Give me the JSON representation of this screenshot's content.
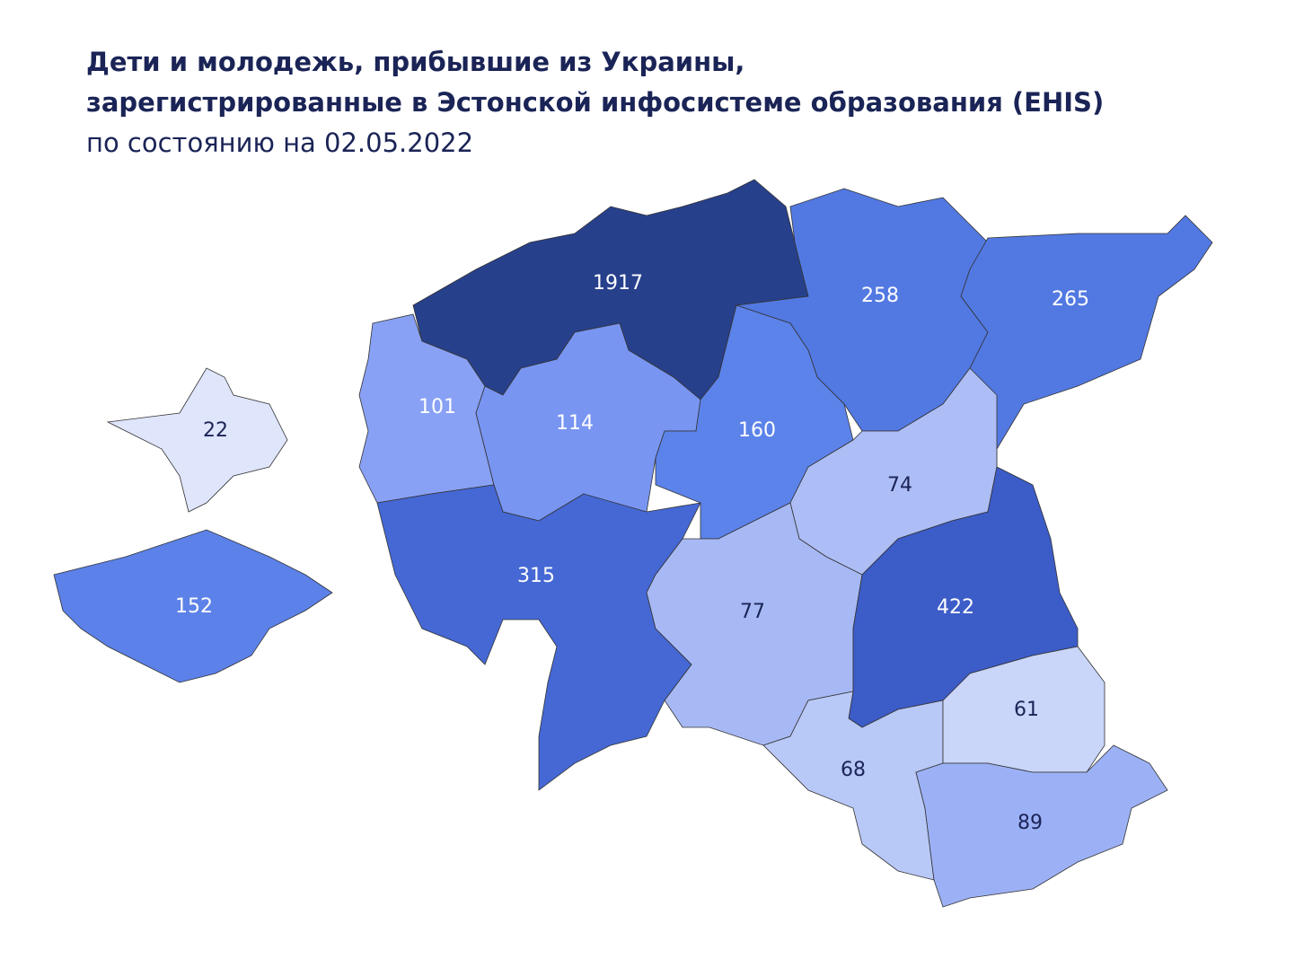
{
  "title": [
    "Дети и молодежь, прибывшие из Украины,",
    "зарегистрированные в Эстонской инфосистеме образования (EHIS)"
  ],
  "subtitle": "по состоянию на 02.05.2022",
  "regions": [
    {
      "value": 1917,
      "color": "#27408c"
    },
    {
      "value": 258,
      "color": "#5279e2"
    },
    {
      "value": 265,
      "color": "#5279e2"
    },
    {
      "value": 101,
      "color": "#88a1f4"
    },
    {
      "value": 114,
      "color": "#7895f2"
    },
    {
      "value": 160,
      "color": "#5c83ea"
    },
    {
      "value": 22,
      "color": "#dfe5fb"
    },
    {
      "value": 152,
      "color": "#5c81e8"
    },
    {
      "value": 315,
      "color": "#4568d4"
    },
    {
      "value": 74,
      "color": "#adbdf5"
    },
    {
      "value": 77,
      "color": "#a7b9f4"
    },
    {
      "value": 422,
      "color": "#3c5cc8"
    },
    {
      "value": 68,
      "color": "#b8c8f7"
    },
    {
      "value": 61,
      "color": "#c9d5f9"
    },
    {
      "value": 89,
      "color": "#9cb1f5"
    }
  ]
}
